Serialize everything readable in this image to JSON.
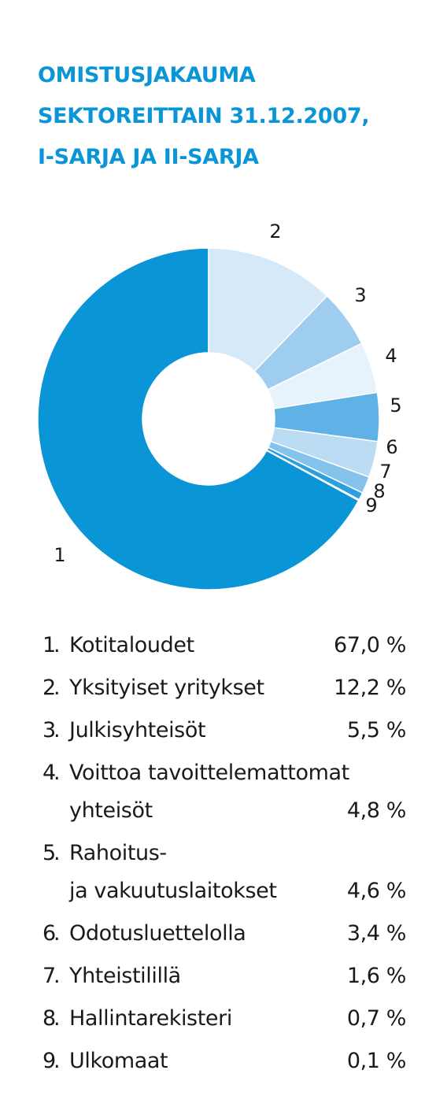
{
  "title_lines": [
    "OMISTUSJAKAUMA",
    "SEKTOREITTAIN 31.12.2007,",
    "I-SARJA JA II-SARJA"
  ],
  "chart_data": {
    "type": "pie",
    "style": "donut",
    "title": "OMISTUSJAKAUMA SEKTOREITTAIN 31.12.2007, I-SARJA JA II-SARJA",
    "slices": [
      {
        "id": "1",
        "label": "Kotitaloudet",
        "value": 67.0,
        "display": "67,0 %",
        "color": "#0a95d6"
      },
      {
        "id": "2",
        "label": "Yksityiset yritykset",
        "value": 12.2,
        "display": "12,2 %",
        "color": "#d6e9f9"
      },
      {
        "id": "3",
        "label": "Julkisyhteisöt",
        "value": 5.5,
        "display": "5,5 %",
        "color": "#9fcdef"
      },
      {
        "id": "4",
        "label": "Voittoa tavoittelemattomat yhteisöt",
        "display_lines": [
          "Voittoa tavoittelemattomat",
          "yhteisöt"
        ],
        "value": 4.8,
        "display": "4,8 %",
        "color": "#e6f2fc"
      },
      {
        "id": "5",
        "label": "Rahoitus- ja vakuutuslaitokset",
        "display_lines": [
          "Rahoitus-",
          "ja vakuutuslaitokset"
        ],
        "value": 4.6,
        "display": "4,6 %",
        "color": "#60b1e6"
      },
      {
        "id": "6",
        "label": "Odotusluettelolla",
        "value": 3.4,
        "display": "3,4 %",
        "color": "#bcdcf4"
      },
      {
        "id": "7",
        "label": "Yhteistilillä",
        "value": 1.6,
        "display": "1,6 %",
        "color": "#85c2ec"
      },
      {
        "id": "8",
        "label": "Hallintarekisteri",
        "value": 0.7,
        "display": "0,7 %",
        "color": "#2b9fe0"
      },
      {
        "id": "9",
        "label": "Ulkomaat",
        "value": 0.1,
        "display": "0,1 %",
        "color": "#6fb9e8"
      }
    ]
  }
}
